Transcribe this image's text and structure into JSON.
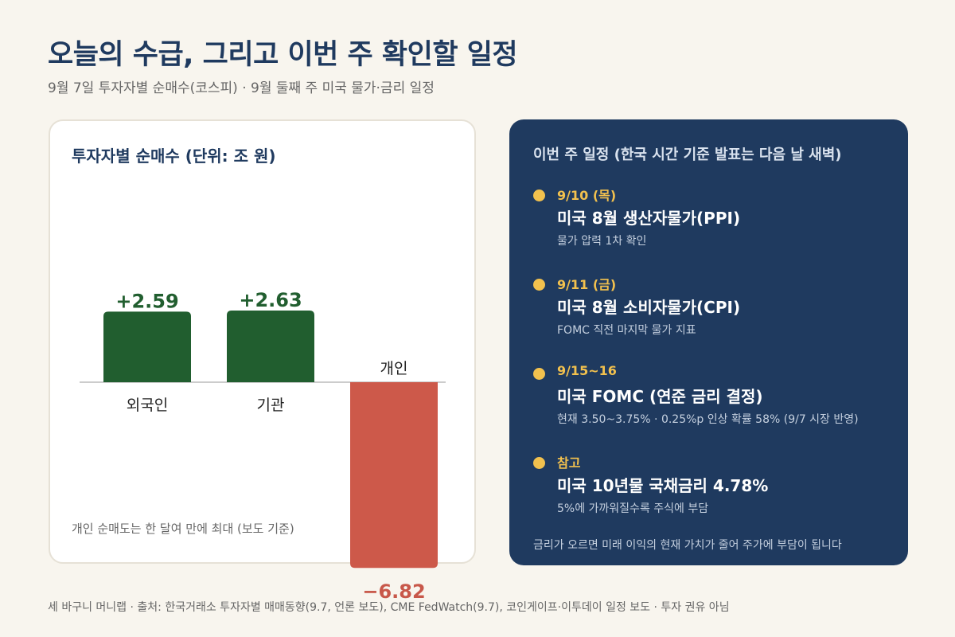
{
  "header": {
    "title": "오늘의 수급, 그리고 이번 주 확인할 일정",
    "subtitle": "9월 7일 투자자별 순매수(코스피) · 9월 둘째 주 미국 물가·금리 일정"
  },
  "chart_data": {
    "type": "bar",
    "title": "투자자별 순매수 (단위: 조 원)",
    "categories": [
      "외국인",
      "기관",
      "개인"
    ],
    "values": [
      2.59,
      2.63,
      -6.82
    ],
    "value_labels": [
      "+2.59",
      "+2.63",
      "−6.82"
    ],
    "colors": [
      "#215e2f",
      "#215e2f",
      "#cd594a"
    ],
    "value_label_colors": [
      "#215e2f",
      "#215e2f",
      "#c8584a"
    ],
    "note": "개인 순매도는 한 달여 만에 최대 (보도 기준)"
  },
  "schedule": {
    "title": "이번 주 일정 (한국 시간 기준 발표는 다음 날 새벽)",
    "events": [
      {
        "date": "9/10 (목)",
        "name": "미국 8월 생산자물가(PPI)",
        "desc": "물가 압력 1차 확인"
      },
      {
        "date": "9/11 (금)",
        "name": "미국 8월 소비자물가(CPI)",
        "desc": "FOMC 직전 마지막 물가 지표"
      },
      {
        "date": "9/15~16",
        "name": "미국 FOMC (연준 금리 결정)",
        "desc": "현재 3.50~3.75% · 0.25%p 인상 확률 58% (9/7 시장 반영)"
      },
      {
        "date": "참고",
        "name": "미국 10년물 국채금리 4.78%",
        "desc": "5%에 가까워질수록 주식에 부담"
      }
    ],
    "note": "금리가 오르면 미래 이익의 현재 가치가 줄어 주가에 부담이 됩니다"
  },
  "footer": {
    "text": "세 바구니 머니랩 · 출처: 한국거래소 투자자별 매매동향(9.7, 언론 보도), CME FedWatch(9.7), 코인게이프·이투데이 일정 보도 · 투자 권유 아님"
  },
  "colors": {
    "title": "#1f3a5f",
    "panel_dark": "#1f3a5f",
    "accent_yellow": "#f2c14e",
    "positive": "#215e2f",
    "negative": "#cd594a",
    "background": "#f8f5ee"
  }
}
